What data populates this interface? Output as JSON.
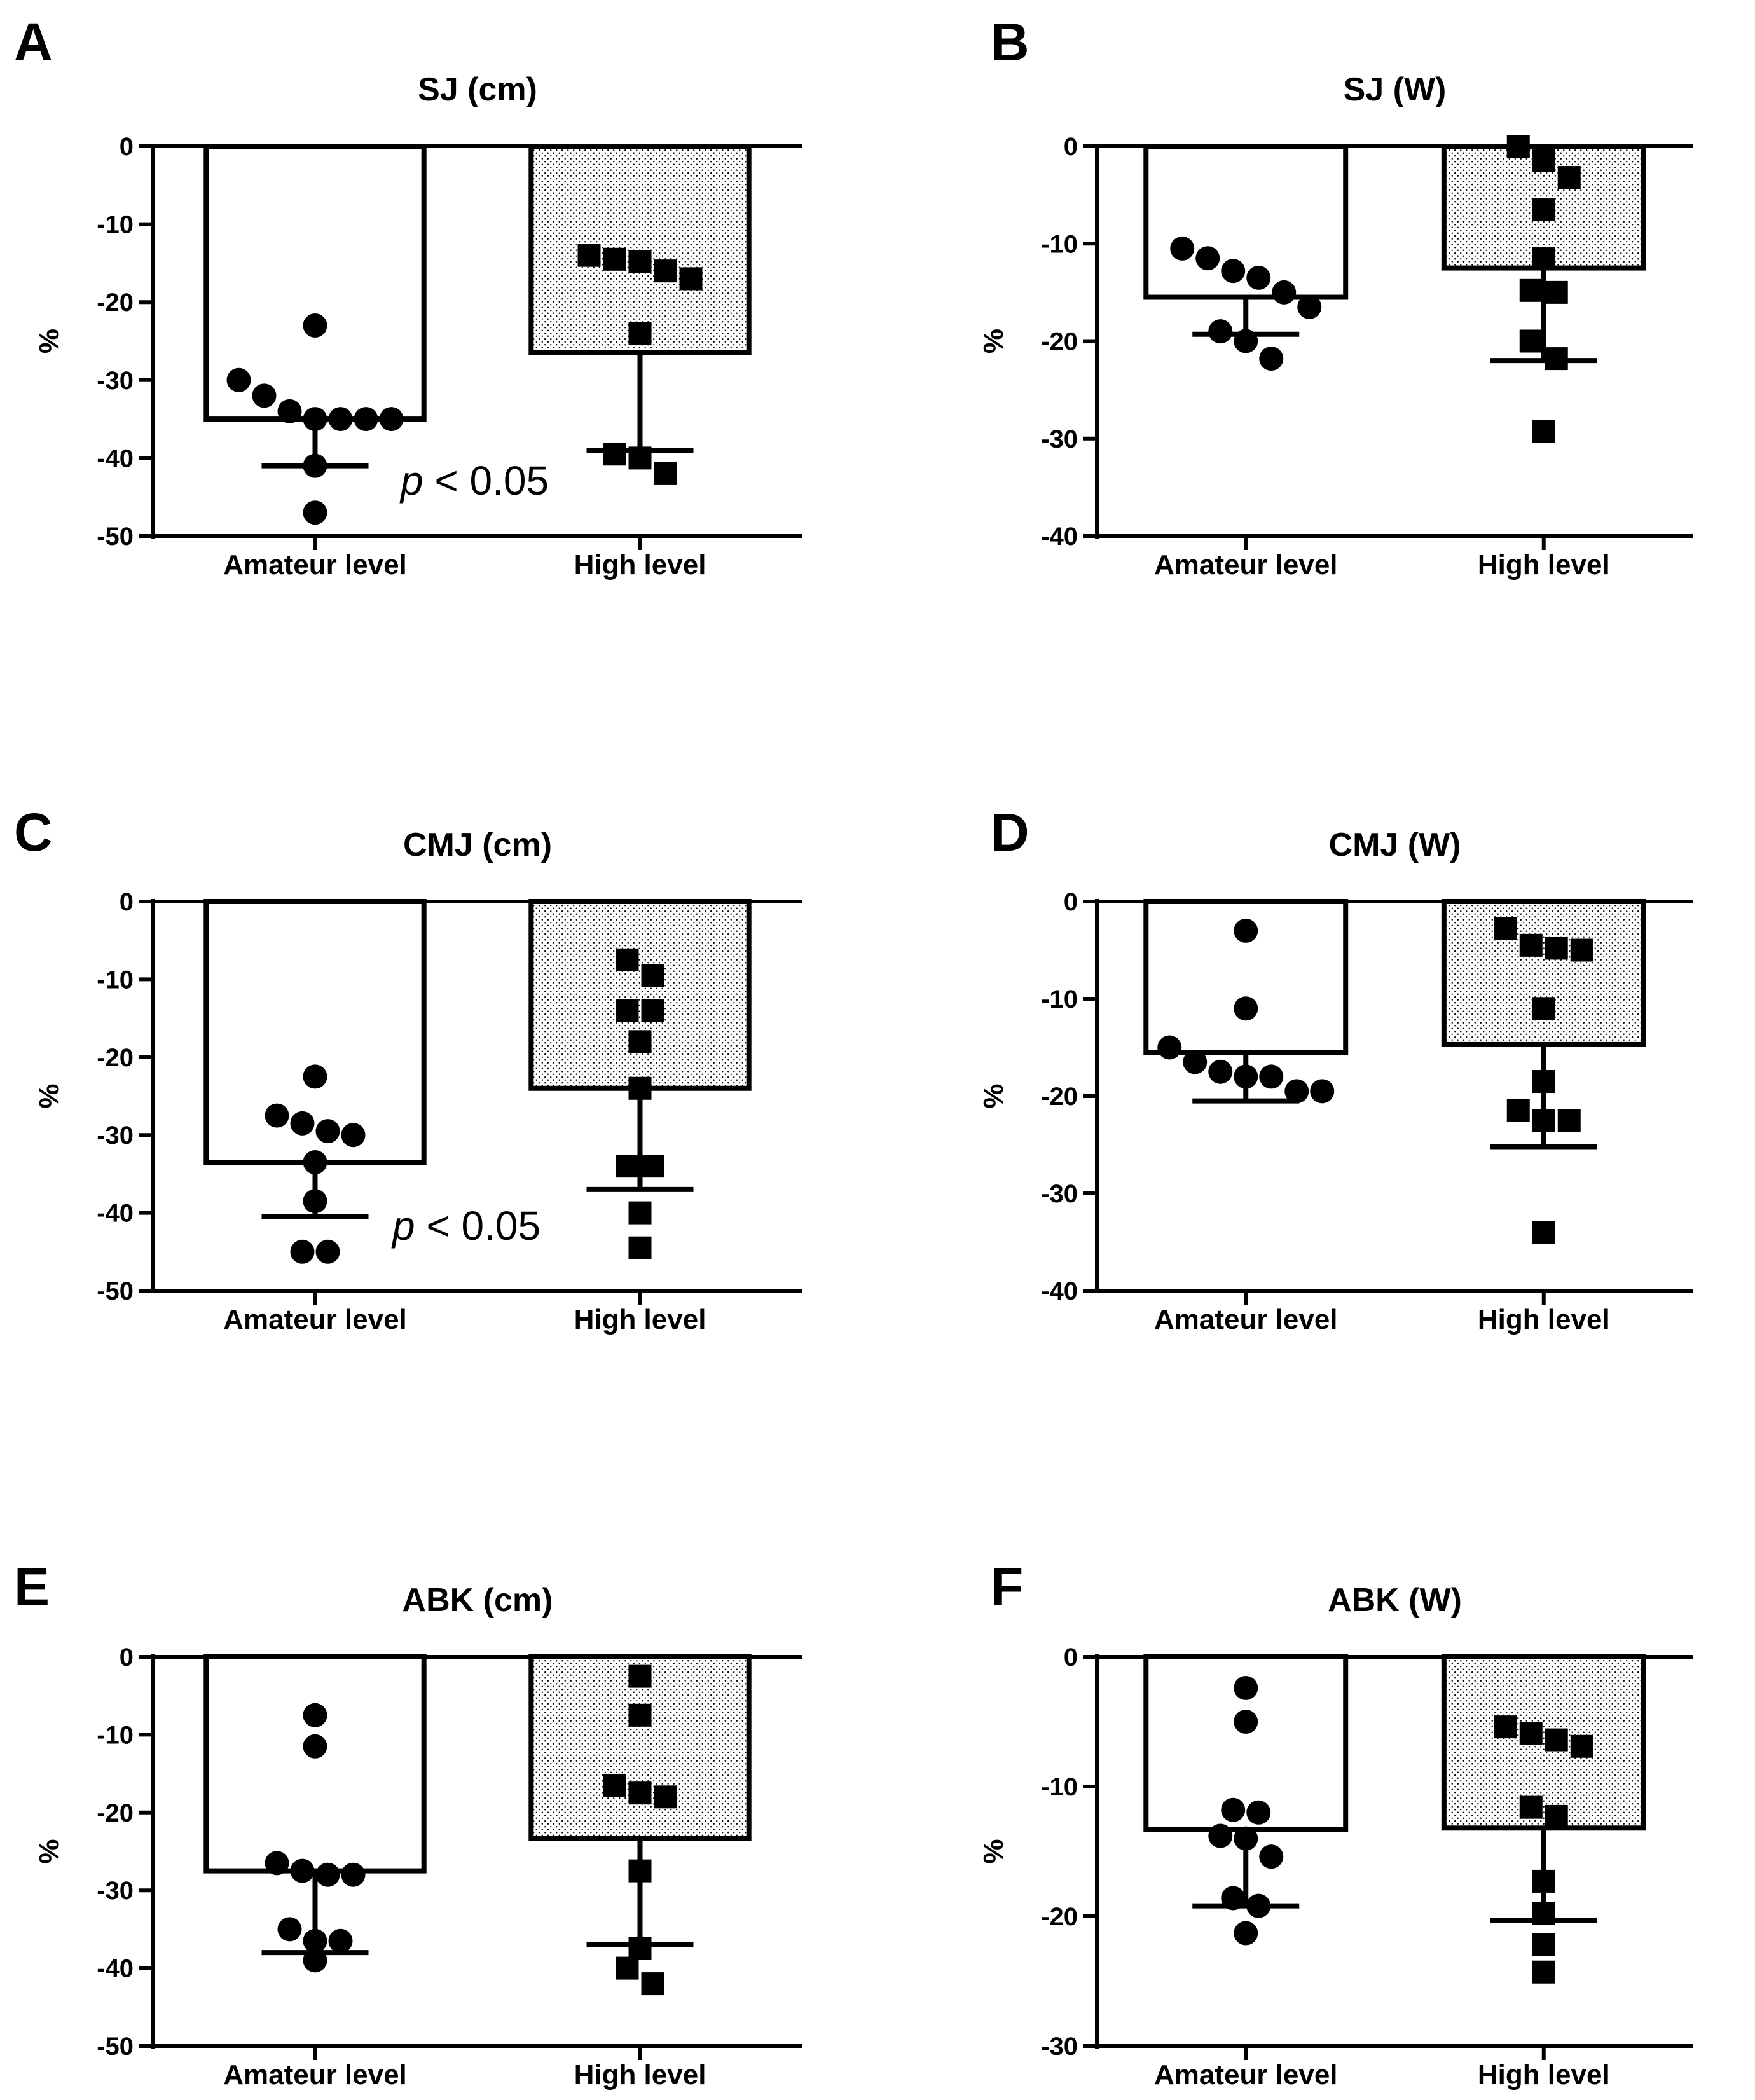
{
  "colors": {
    "ink": "#000000",
    "background": "#ffffff",
    "stipple": "#000000"
  },
  "chart_data": [
    {
      "panel": "A",
      "type": "bar",
      "title": "SJ (cm)",
      "ylabel": "%",
      "xlabel": "",
      "ylim": [
        -50,
        0
      ],
      "yticks": [
        0,
        -10,
        -20,
        -30,
        -40,
        -50
      ],
      "categories": [
        "Amateur level",
        "High level"
      ],
      "bars": [
        {
          "category": "Amateur level",
          "mean": -35,
          "error_low": -41,
          "fill": "white",
          "marker": "circle",
          "points": [
            -23,
            -30,
            -32,
            -34,
            -35,
            -35,
            -35,
            -35,
            -41,
            -47
          ]
        },
        {
          "category": "High level",
          "mean": -26.5,
          "error_low": -39,
          "fill": "stipple",
          "marker": "square",
          "points": [
            -14,
            -14.5,
            -14.8,
            -16,
            -17,
            -24,
            -39.5,
            -40,
            -42
          ]
        }
      ],
      "annotation": {
        "text": "< 0.05",
        "italic_prefix": "p"
      }
    },
    {
      "panel": "B",
      "type": "bar",
      "title": "SJ (W)",
      "ylabel": "%",
      "xlabel": "",
      "ylim": [
        -40,
        0
      ],
      "yticks": [
        0,
        -10,
        -20,
        -30,
        -40
      ],
      "categories": [
        "Amateur level",
        "High level"
      ],
      "bars": [
        {
          "category": "Amateur level",
          "mean": -15.5,
          "error_low": -19.3,
          "fill": "white",
          "marker": "circle",
          "points": [
            -10.5,
            -11.5,
            -12.8,
            -13.5,
            -15,
            -16.5,
            -19,
            -20,
            -21.8
          ]
        },
        {
          "category": "High level",
          "mean": -12.5,
          "error_low": -22,
          "fill": "stipple",
          "marker": "square",
          "points": [
            0,
            -1.5,
            -3.2,
            -6.5,
            -11.5,
            -14.8,
            -15,
            -20,
            -21.8,
            -29.3
          ]
        }
      ]
    },
    {
      "panel": "C",
      "type": "bar",
      "title": "CMJ (cm)",
      "ylabel": "%",
      "xlabel": "",
      "ylim": [
        -50,
        0
      ],
      "yticks": [
        0,
        -10,
        -20,
        -30,
        -40,
        -50
      ],
      "categories": [
        "Amateur level",
        "High level"
      ],
      "bars": [
        {
          "category": "Amateur level",
          "mean": -33.5,
          "error_low": -40.5,
          "fill": "white",
          "marker": "circle",
          "points": [
            -22.5,
            -27.5,
            -28.5,
            -29.5,
            -30,
            -33.5,
            -38.5,
            -45,
            -45
          ]
        },
        {
          "category": "High level",
          "mean": -24,
          "error_low": -37,
          "fill": "stipple",
          "marker": "square",
          "points": [
            -7.5,
            -9.5,
            -14,
            -14,
            -18,
            -24,
            -34,
            -34,
            -40,
            -44.5
          ]
        }
      ],
      "annotation": {
        "text": "< 0.05",
        "italic_prefix": "p"
      }
    },
    {
      "panel": "D",
      "type": "bar",
      "title": "CMJ (W)",
      "ylabel": "%",
      "xlabel": "",
      "ylim": [
        -40,
        0
      ],
      "yticks": [
        0,
        -10,
        -20,
        -30,
        -40
      ],
      "categories": [
        "Amateur level",
        "High level"
      ],
      "bars": [
        {
          "category": "Amateur level",
          "mean": -15.5,
          "error_low": -20.5,
          "fill": "white",
          "marker": "circle",
          "points": [
            -3,
            -11,
            -15,
            -16.5,
            -17.5,
            -18,
            -18,
            -19.5,
            -19.5
          ]
        },
        {
          "category": "High level",
          "mean": -14.7,
          "error_low": -25.2,
          "fill": "stipple",
          "marker": "square",
          "points": [
            -2.8,
            -4.5,
            -4.8,
            -5,
            -11,
            -18.5,
            -21.5,
            -22.5,
            -22.5,
            -34
          ]
        }
      ]
    },
    {
      "panel": "E",
      "type": "bar",
      "title": "ABK (cm)",
      "ylabel": "%",
      "xlabel": "",
      "ylim": [
        -50,
        0
      ],
      "yticks": [
        0,
        -10,
        -20,
        -30,
        -40,
        -50
      ],
      "categories": [
        "Amateur level",
        "High level"
      ],
      "bars": [
        {
          "category": "Amateur level",
          "mean": -27.5,
          "error_low": -38,
          "fill": "white",
          "marker": "circle",
          "points": [
            -7.5,
            -11.5,
            -26.5,
            -27.5,
            -28,
            -28,
            -35,
            -36.5,
            -36.5,
            -39
          ]
        },
        {
          "category": "High level",
          "mean": -23.3,
          "error_low": -37,
          "fill": "stipple",
          "marker": "square",
          "points": [
            -2.5,
            -7.5,
            -16.5,
            -17.5,
            -18,
            -27.5,
            -37.5,
            -40,
            -42
          ]
        }
      ]
    },
    {
      "panel": "F",
      "type": "bar",
      "title": "ABK (W)",
      "ylabel": "%",
      "xlabel": "",
      "ylim": [
        -30,
        0
      ],
      "yticks": [
        0,
        -10,
        -20,
        -30
      ],
      "categories": [
        "Amateur level",
        "High level"
      ],
      "bars": [
        {
          "category": "Amateur level",
          "mean": -13.3,
          "error_low": -19.2,
          "fill": "white",
          "marker": "circle",
          "points": [
            -2.4,
            -5,
            -11.8,
            -12,
            -13.8,
            -14,
            -15.4,
            -18.6,
            -19.2,
            -21.3
          ]
        },
        {
          "category": "High level",
          "mean": -13.2,
          "error_low": -20.3,
          "fill": "stipple",
          "marker": "square",
          "points": [
            -5.4,
            -6.4,
            -6.9,
            -5.9,
            -11.6,
            -12.3,
            -17.3,
            -19.8,
            -22.2,
            -24.3
          ]
        }
      ]
    }
  ]
}
